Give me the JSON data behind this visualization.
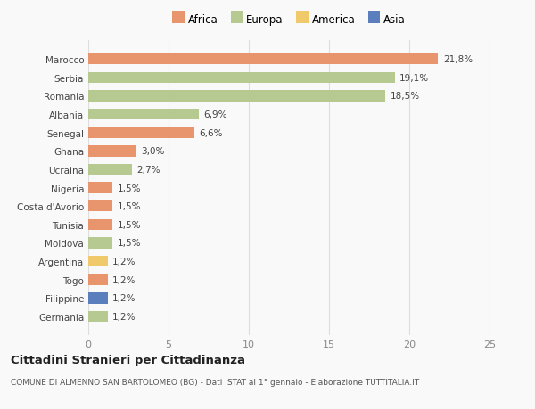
{
  "categories": [
    "Germania",
    "Filippine",
    "Togo",
    "Argentina",
    "Moldova",
    "Tunisia",
    "Costa d'Avorio",
    "Nigeria",
    "Ucraina",
    "Ghana",
    "Senegal",
    "Albania",
    "Romania",
    "Serbia",
    "Marocco"
  ],
  "values": [
    1.2,
    1.2,
    1.2,
    1.2,
    1.5,
    1.5,
    1.5,
    1.5,
    2.7,
    3.0,
    6.6,
    6.9,
    18.5,
    19.1,
    21.8
  ],
  "labels": [
    "1,2%",
    "1,2%",
    "1,2%",
    "1,2%",
    "1,5%",
    "1,5%",
    "1,5%",
    "1,5%",
    "2,7%",
    "3,0%",
    "6,6%",
    "6,9%",
    "18,5%",
    "19,1%",
    "21,8%"
  ],
  "colors": [
    "#b5c990",
    "#5b7fbd",
    "#e8956d",
    "#f0c96a",
    "#b5c990",
    "#e8956d",
    "#e8956d",
    "#e8956d",
    "#b5c990",
    "#e8956d",
    "#e8956d",
    "#b5c990",
    "#b5c990",
    "#b5c990",
    "#e8956d"
  ],
  "legend_labels": [
    "Africa",
    "Europa",
    "America",
    "Asia"
  ],
  "legend_colors": [
    "#e8956d",
    "#b5c990",
    "#f0c96a",
    "#5b7fbd"
  ],
  "title": "Cittadini Stranieri per Cittadinanza",
  "subtitle": "COMUNE DI ALMENNO SAN BARTOLOMEO (BG) - Dati ISTAT al 1° gennaio - Elaborazione TUTTITALIA.IT",
  "xlim": [
    0,
    25
  ],
  "xticks": [
    0,
    5,
    10,
    15,
    20,
    25
  ],
  "background_color": "#f9f9f9",
  "bar_height": 0.6,
  "grid_color": "#dddddd"
}
